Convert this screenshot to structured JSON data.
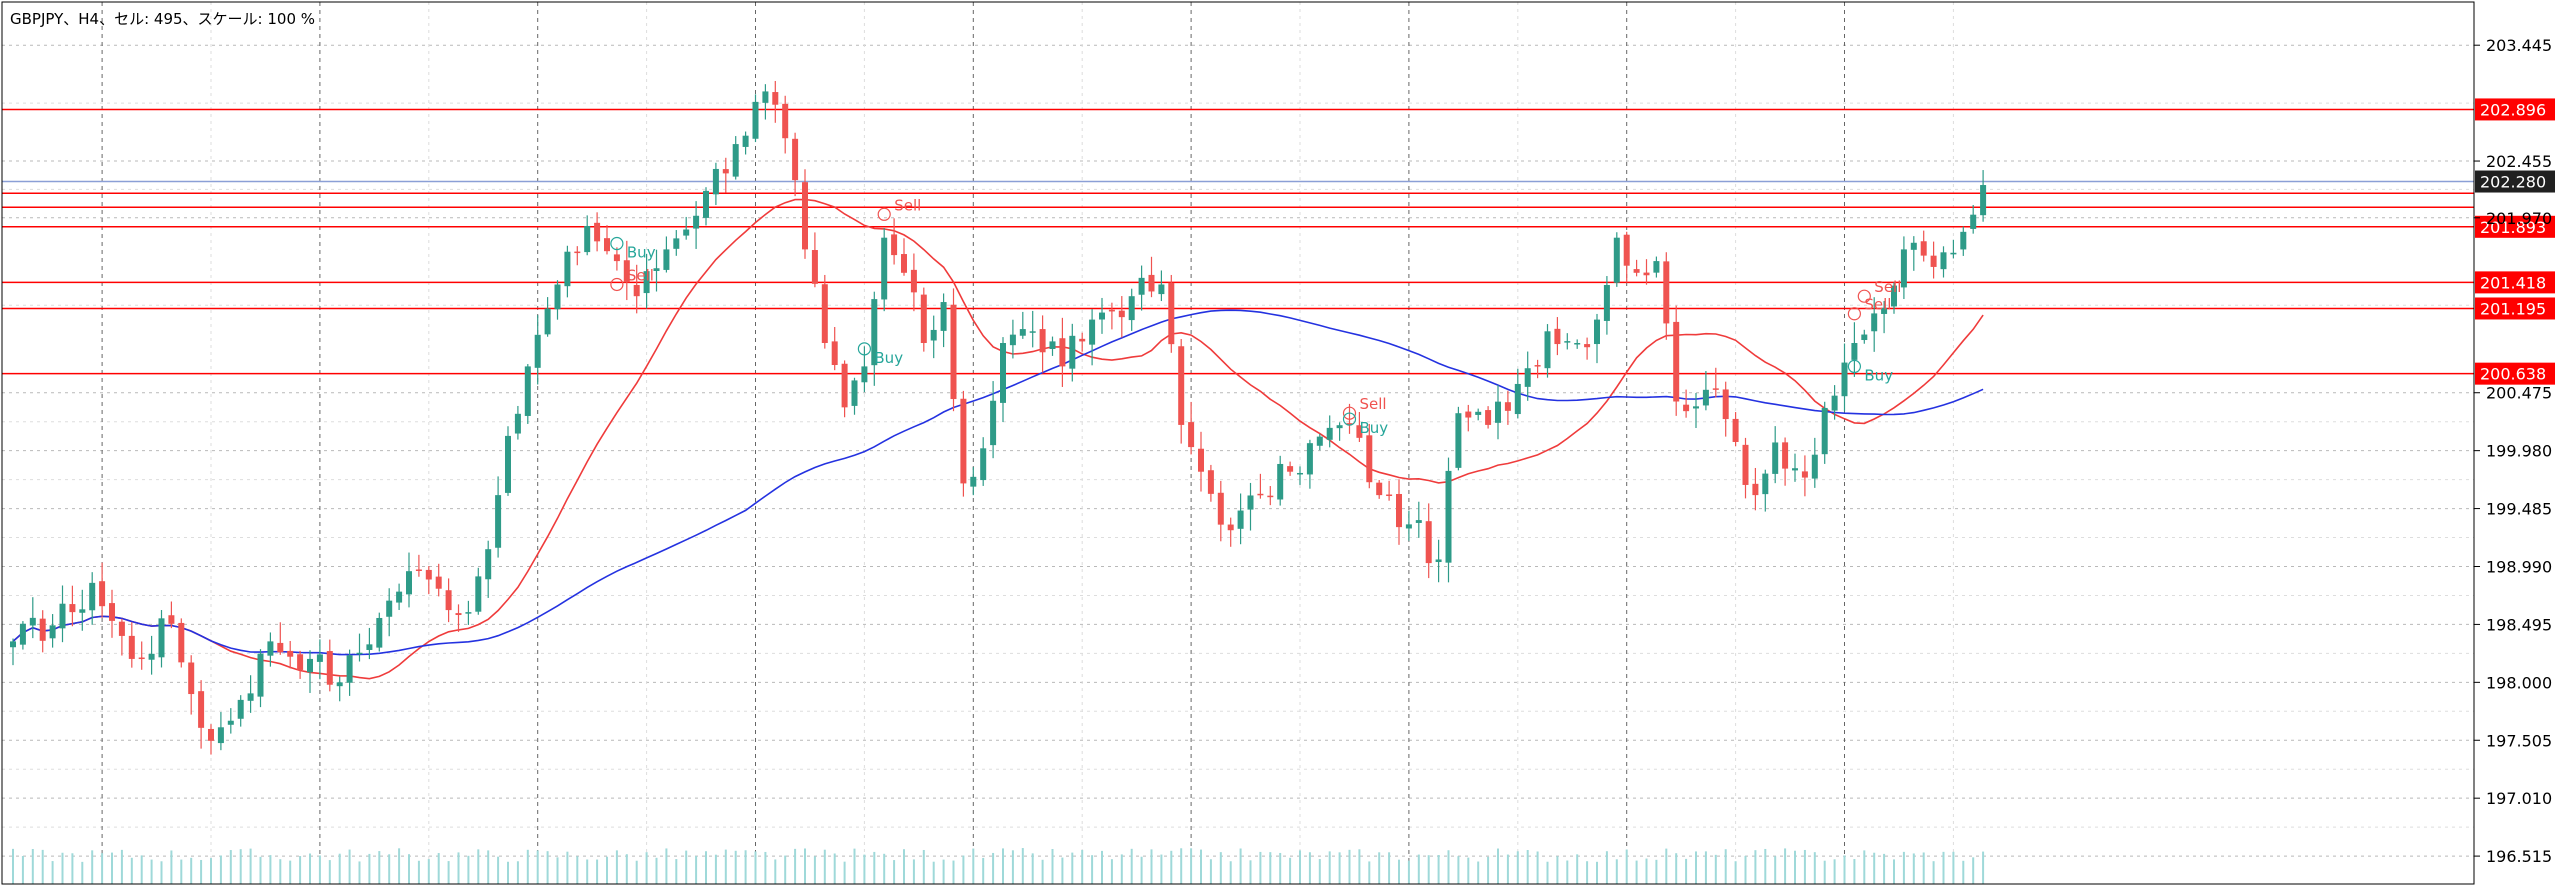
{
  "chart_header": {
    "title": "GBPJPY、H4、セル: 495、スケール: 100 %"
  },
  "colors": {
    "bull": "#2e9b88",
    "bear": "#ef5350",
    "ma_fast": "#ef3b3b",
    "ma_slow": "#2432e0",
    "hline": "#ff0000",
    "current_line": "#8b9fd6",
    "grid": "#b9b9b9",
    "volume": "#9fd9d9",
    "buy_text": "#26a69a",
    "sell_text": "#ef5350",
    "current_label_bg": "#202020"
  },
  "chart_data": {
    "type": "candlestick",
    "symbol": "GBPJPY",
    "timeframe": "H4",
    "ylim": [
      196.4,
      203.8
    ],
    "y_ticks": [
      "203.445",
      "202.455",
      "201.970",
      "200.475",
      "199.980",
      "199.485",
      "198.990",
      "198.495",
      "198.000",
      "197.505",
      "197.010",
      "196.515"
    ],
    "horizontal_lines": [
      {
        "price": 202.896,
        "label": "202.896"
      },
      {
        "price": 202.18,
        "label": ""
      },
      {
        "price": 202.06,
        "label": ""
      },
      {
        "price": 201.893,
        "label": "201.893"
      },
      {
        "price": 201.418,
        "label": "201.418"
      },
      {
        "price": 201.195,
        "label": "201.195"
      },
      {
        "price": 200.638,
        "label": "200.638"
      }
    ],
    "current_price": {
      "price": 202.28,
      "label": "202.280"
    },
    "signals": [
      {
        "type": "Buy",
        "bar": 61,
        "price": 201.75,
        "label": "Buy"
      },
      {
        "type": "Sell",
        "bar": 61,
        "price": 201.4,
        "label": "Sell"
      },
      {
        "type": "Sell",
        "bar": 88,
        "price": 202.0,
        "label": "Sell"
      },
      {
        "type": "Buy",
        "bar": 86,
        "price": 200.85,
        "label": "Buy"
      },
      {
        "type": "Sell",
        "bar": 135,
        "price": 200.3,
        "label": "Sell"
      },
      {
        "type": "Buy",
        "bar": 135,
        "price": 200.25,
        "label": "Buy"
      },
      {
        "type": "Sell",
        "bar": 187,
        "price": 201.3,
        "label": "Sell"
      },
      {
        "type": "Sell",
        "bar": 186,
        "price": 201.15,
        "label": "Sell"
      },
      {
        "type": "Buy",
        "bar": 186,
        "price": 200.7,
        "label": "Buy"
      }
    ],
    "anchors": [
      [
        0,
        198.35
      ],
      [
        6,
        198.6
      ],
      [
        8,
        198.85
      ],
      [
        12,
        198.2
      ],
      [
        16,
        198.5
      ],
      [
        18,
        197.9
      ],
      [
        20,
        197.5
      ],
      [
        23,
        197.85
      ],
      [
        26,
        198.35
      ],
      [
        30,
        198.2
      ],
      [
        33,
        198.0
      ],
      [
        37,
        198.55
      ],
      [
        40,
        198.95
      ],
      [
        43,
        198.8
      ],
      [
        46,
        198.6
      ],
      [
        49,
        199.6
      ],
      [
        52,
        200.7
      ],
      [
        55,
        201.4
      ],
      [
        58,
        201.9
      ],
      [
        61,
        201.6
      ],
      [
        63,
        201.3
      ],
      [
        66,
        201.7
      ],
      [
        70,
        202.2
      ],
      [
        73,
        202.6
      ],
      [
        76,
        203.05
      ],
      [
        78,
        202.65
      ],
      [
        80,
        201.7
      ],
      [
        82,
        200.9
      ],
      [
        84,
        200.35
      ],
      [
        86,
        200.7
      ],
      [
        88,
        201.8
      ],
      [
        90,
        201.5
      ],
      [
        92,
        200.9
      ],
      [
        94,
        201.25
      ],
      [
        96,
        199.7
      ],
      [
        98,
        200.0
      ],
      [
        100,
        200.9
      ],
      [
        103,
        201.0
      ],
      [
        106,
        200.7
      ],
      [
        109,
        201.1
      ],
      [
        113,
        201.3
      ],
      [
        116,
        201.4
      ],
      [
        118,
        200.2
      ],
      [
        120,
        199.8
      ],
      [
        123,
        199.3
      ],
      [
        126,
        199.6
      ],
      [
        129,
        199.8
      ],
      [
        132,
        200.1
      ],
      [
        135,
        200.2
      ],
      [
        138,
        199.6
      ],
      [
        141,
        199.35
      ],
      [
        144,
        199.05
      ],
      [
        146,
        200.3
      ],
      [
        149,
        200.2
      ],
      [
        152,
        200.55
      ],
      [
        155,
        201.0
      ],
      [
        158,
        200.9
      ],
      [
        160,
        201.1
      ],
      [
        162,
        201.8
      ],
      [
        164,
        201.5
      ],
      [
        166,
        201.6
      ],
      [
        168,
        200.4
      ],
      [
        171,
        200.5
      ],
      [
        173,
        200.25
      ],
      [
        176,
        199.6
      ],
      [
        178,
        200.05
      ],
      [
        181,
        199.75
      ],
      [
        184,
        200.45
      ],
      [
        186,
        200.9
      ],
      [
        189,
        201.2
      ],
      [
        191,
        201.7
      ],
      [
        194,
        201.55
      ],
      [
        197,
        201.85
      ],
      [
        199,
        202.25
      ]
    ]
  }
}
